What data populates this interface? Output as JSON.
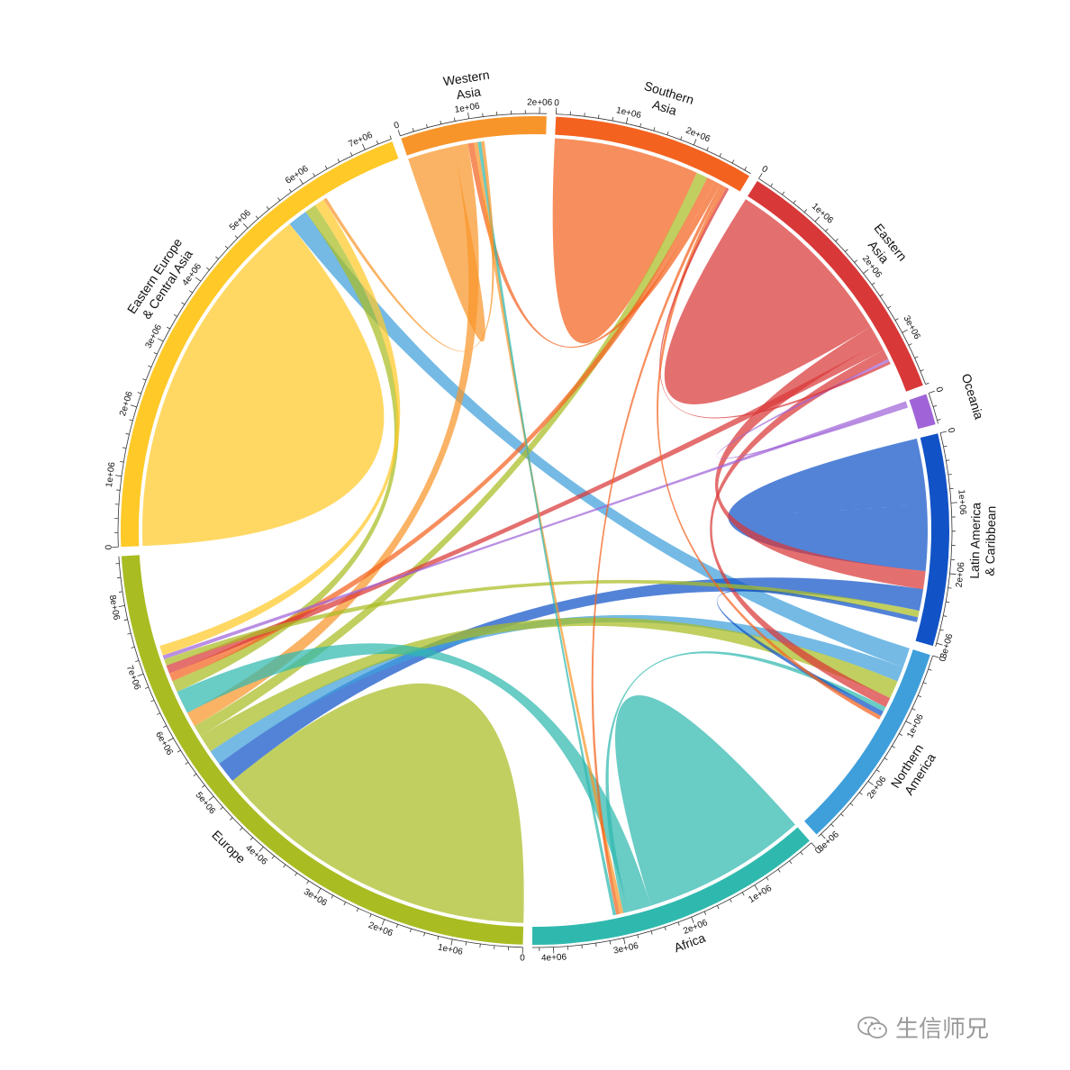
{
  "watermark": {
    "text": "生信师兄",
    "icon": "wechat-icon"
  },
  "chart_data": {
    "type": "chord",
    "title": "",
    "unit_label_format": "Ne+06",
    "regions": [
      {
        "id": "southern_asia",
        "name": "Southern Asia",
        "lines": [
          "Southern",
          "Asia"
        ],
        "color": "#F4621F",
        "total": 2900000,
        "ticks": [
          "1e+06",
          "2e+06"
        ]
      },
      {
        "id": "eastern_asia",
        "name": "Eastern Asia",
        "lines": [
          "Eastern",
          "Asia"
        ],
        "color": "#D93838",
        "total": 3800000,
        "ticks": [
          "1e+06",
          "2e+06",
          "3e+06"
        ]
      },
      {
        "id": "oceania",
        "name": "Oceania",
        "lines": [
          "Oceania"
        ],
        "color": "#A064D8",
        "total": 450000,
        "ticks": []
      },
      {
        "id": "latin_america",
        "name": "Latin America & Caribbean",
        "lines": [
          "Latin America",
          "& Caribbean"
        ],
        "color": "#1153C7",
        "total": 3050000,
        "ticks": [
          "1e+06",
          "2e+06",
          "3e+06"
        ]
      },
      {
        "id": "northern_america",
        "name": "Northern America",
        "lines": [
          "Northern",
          "America"
        ],
        "color": "#3E9FDB",
        "total": 3050000,
        "ticks": [
          "1e+06",
          "2e+06",
          "3e+06"
        ]
      },
      {
        "id": "africa",
        "name": "Africa",
        "lines": [
          "Africa"
        ],
        "color": "#2FB9AE",
        "total": 4300000,
        "ticks": [
          "1e+06",
          "2e+06",
          "3e+06",
          "4e+06"
        ]
      },
      {
        "id": "europe",
        "name": "Europe",
        "lines": [
          "Europe"
        ],
        "color": "#A9BC22",
        "total": 8700000,
        "ticks": [
          "1e+06",
          "2e+06",
          "3e+06",
          "4e+06",
          "5e+06",
          "6e+06",
          "7e+06",
          "8e+06"
        ]
      },
      {
        "id": "eastern_europe",
        "name": "Eastern Europe & Central Asia",
        "lines": [
          "Eastern Europe",
          "& Central Asia"
        ],
        "color": "#FFC928",
        "total": 7400000,
        "ticks": [
          "1e+06",
          "2e+06",
          "3e+06",
          "4e+06",
          "5e+06",
          "6e+06",
          "7e+06"
        ]
      },
      {
        "id": "western_asia",
        "name": "Western Asia",
        "lines": [
          "Western",
          "Asia"
        ],
        "color": "#F8952A",
        "total": 2100000,
        "ticks": [
          "1e+06",
          "2e+06"
        ]
      }
    ],
    "flows": [
      {
        "from": "eastern_europe",
        "to": "eastern_europe",
        "value": 5500000
      },
      {
        "from": "europe",
        "to": "europe",
        "value": 5000000
      },
      {
        "from": "southern_asia",
        "to": "southern_asia",
        "value": 2200000
      },
      {
        "from": "eastern_asia",
        "to": "eastern_asia",
        "value": 2700000
      },
      {
        "from": "latin_america",
        "to": "latin_america",
        "value": 2000000
      },
      {
        "from": "africa",
        "to": "africa",
        "value": 2500000
      },
      {
        "from": "western_asia",
        "to": "western_asia",
        "value": 700000
      },
      {
        "from": "northern_america",
        "to": "eastern_europe",
        "value": 600000
      },
      {
        "from": "eastern_asia",
        "to": "latin_america",
        "value": 550000
      },
      {
        "from": "latin_america",
        "to": "europe",
        "value": 650000
      },
      {
        "from": "northern_america",
        "to": "europe",
        "value": 450000
      },
      {
        "from": "europe",
        "to": "northern_america",
        "value": 550000
      },
      {
        "from": "europe",
        "to": "southern_asia",
        "value": 350000
      },
      {
        "from": "western_asia",
        "to": "europe",
        "value": 450000
      },
      {
        "from": "africa",
        "to": "europe",
        "value": 700000
      },
      {
        "from": "europe",
        "to": "eastern_europe",
        "value": 350000
      },
      {
        "from": "southern_asia",
        "to": "europe",
        "value": 250000
      },
      {
        "from": "eastern_asia",
        "to": "europe",
        "value": 250000
      },
      {
        "from": "eastern_asia",
        "to": "northern_america",
        "value": 300000
      },
      {
        "from": "southern_asia",
        "to": "western_asia",
        "value": 180000
      },
      {
        "from": "africa",
        "to": "northern_america",
        "value": 150000
      },
      {
        "from": "europe",
        "to": "latin_america",
        "value": 200000
      },
      {
        "from": "oceania",
        "to": "europe",
        "value": 120000
      },
      {
        "from": "oceania",
        "to": "eastern_asia",
        "value": 80000
      },
      {
        "from": "western_asia",
        "to": "africa",
        "value": 120000
      },
      {
        "from": "southern_asia",
        "to": "africa",
        "value": 100000
      },
      {
        "from": "latin_america",
        "to": "northern_america",
        "value": 150000
      },
      {
        "from": "eastern_europe",
        "to": "europe",
        "value": 300000
      },
      {
        "from": "southern_asia",
        "to": "northern_america",
        "value": 120000
      },
      {
        "from": "africa",
        "to": "western_asia",
        "value": 100000
      },
      {
        "from": "eastern_asia",
        "to": "southern_asia",
        "value": 80000
      },
      {
        "from": "western_asia",
        "to": "eastern_europe",
        "value": 100000
      }
    ]
  }
}
